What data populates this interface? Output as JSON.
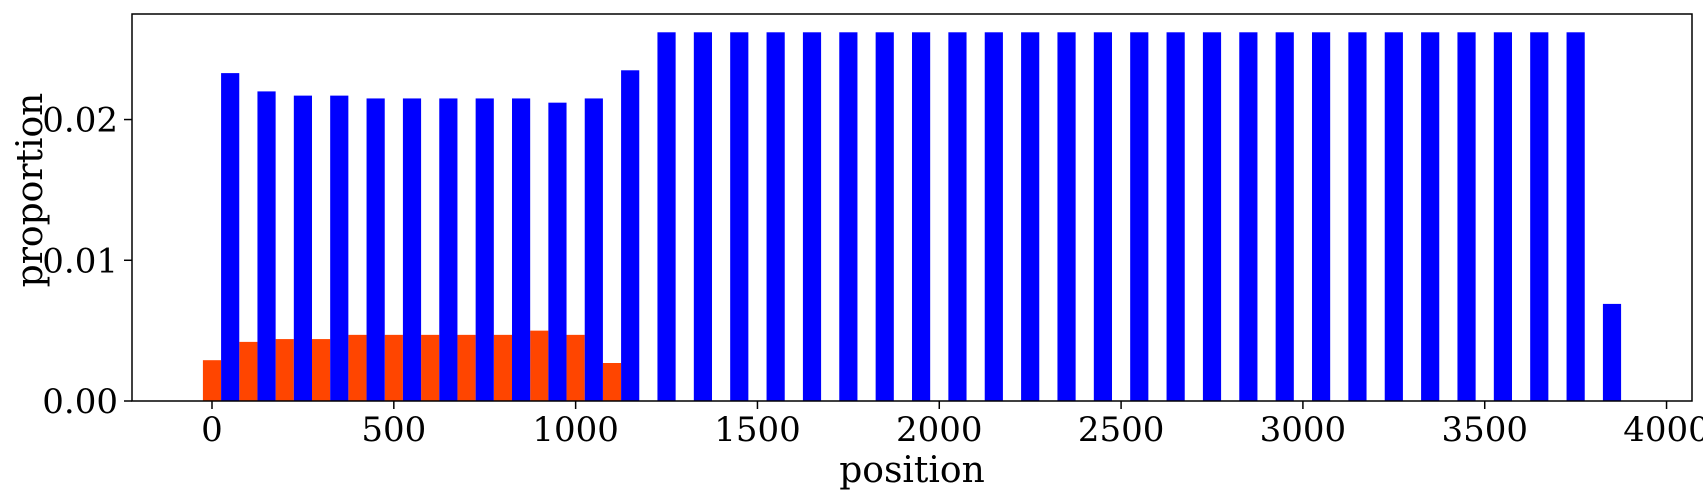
{
  "chart_data": {
    "type": "bar",
    "title": "",
    "xlabel": "position",
    "ylabel": "proportion",
    "xlim": [
      -220,
      4070
    ],
    "ylim": [
      0,
      0.0275
    ],
    "xticks": [
      0,
      500,
      1000,
      1500,
      2000,
      2500,
      3000,
      3500,
      4000
    ],
    "yticks": [
      0.0,
      0.01,
      0.02
    ],
    "ytick_labels": [
      "0.00",
      "0.01",
      "0.02"
    ],
    "bar_width": 50,
    "grid": false,
    "legend": "none",
    "series": [
      {
        "color": "#ff4500",
        "x": [
          0,
          100,
          200,
          300,
          400,
          500,
          600,
          700,
          800,
          900,
          1000,
          1100
        ],
        "values": [
          0.0029,
          0.0042,
          0.0044,
          0.0044,
          0.0047,
          0.0047,
          0.0047,
          0.0047,
          0.0047,
          0.005,
          0.0047,
          0.0027
        ]
      },
      {
        "color": "#0000ff",
        "x": [
          50,
          150,
          250,
          350,
          450,
          550,
          650,
          750,
          850,
          950,
          1050,
          1150,
          1250,
          1350,
          1450,
          1550,
          1650,
          1750,
          1850,
          1950,
          2050,
          2150,
          2250,
          2350,
          2450,
          2550,
          2650,
          2750,
          2850,
          2950,
          3050,
          3150,
          3250,
          3350,
          3450,
          3550,
          3650,
          3750,
          3850
        ],
        "values": [
          0.0233,
          0.022,
          0.0217,
          0.0217,
          0.0215,
          0.0215,
          0.0215,
          0.0215,
          0.0215,
          0.0212,
          0.0215,
          0.0235,
          0.0262,
          0.0262,
          0.0262,
          0.0262,
          0.0262,
          0.0262,
          0.0262,
          0.0262,
          0.0262,
          0.0262,
          0.0262,
          0.0262,
          0.0262,
          0.0262,
          0.0262,
          0.0262,
          0.0262,
          0.0262,
          0.0262,
          0.0262,
          0.0262,
          0.0262,
          0.0262,
          0.0262,
          0.0262,
          0.0262,
          0.0069
        ]
      }
    ]
  }
}
